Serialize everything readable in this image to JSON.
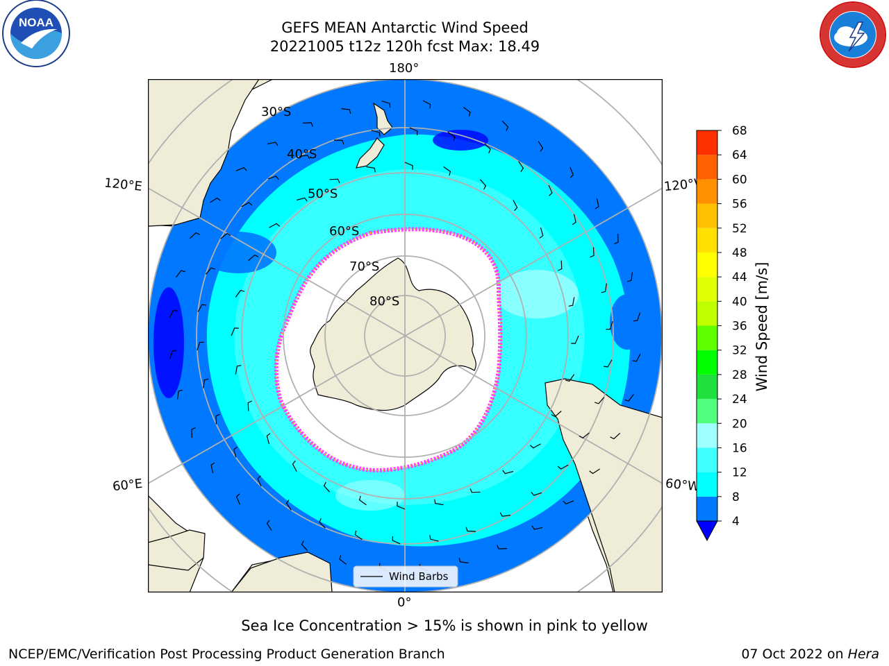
{
  "header": {
    "title_line1": "GEFS MEAN Antarctic Wind Speed",
    "title_line2": "20221005 t12z 120h fcst   Max: 18.49"
  },
  "logos": {
    "left": "NOAA",
    "left_ring_text": "NATIONAL OCEANIC AND ATMOSPHERIC ADMINISTRATION · U.S. DEPARTMENT OF COMMERCE",
    "right_ring_text": "NATIONAL WEATHER SERVICE"
  },
  "map": {
    "projection": "south-polar-stereographic",
    "lon_labels": {
      "top": "180°",
      "bottom": "0°",
      "upper_left": "120°E",
      "upper_right": "120°W",
      "lower_left": "60°E",
      "lower_right": "60°W"
    },
    "lat_labels": [
      "30°S",
      "40°S",
      "50°S",
      "60°S",
      "70°S",
      "80°S"
    ],
    "legend": {
      "label": "Wind Barbs"
    },
    "colors": {
      "land": "#efecd8",
      "ice_edge_pink": "#ff40ff",
      "ice_edge_yellow": "#ffc000",
      "gridline": "#b0b0b0"
    }
  },
  "colorbar": {
    "label": "Wind Speed [m/s]",
    "ticks": [
      "4",
      "8",
      "12",
      "16",
      "20",
      "24",
      "28",
      "32",
      "36",
      "40",
      "44",
      "48",
      "52",
      "56",
      "60",
      "64",
      "68"
    ],
    "under_color": "#0000ff",
    "bin_colors": [
      "#0078ff",
      "#00ffff",
      "#40ffff",
      "#a0ffff",
      "#50ff80",
      "#20e040",
      "#00ff00",
      "#60ff00",
      "#c0ff00",
      "#e0ff00",
      "#ffff00",
      "#ffe000",
      "#ffc000",
      "#ff9000",
      "#ff6000",
      "#ff3000"
    ]
  },
  "caption": "Sea Ice Concentration > 15% is shown in pink to yellow",
  "footer": {
    "left": "NCEP/EMC/Verification Post Processing Product Generation Branch",
    "right_prefix": "07 Oct 2022 on ",
    "right_machine": "Hera"
  }
}
